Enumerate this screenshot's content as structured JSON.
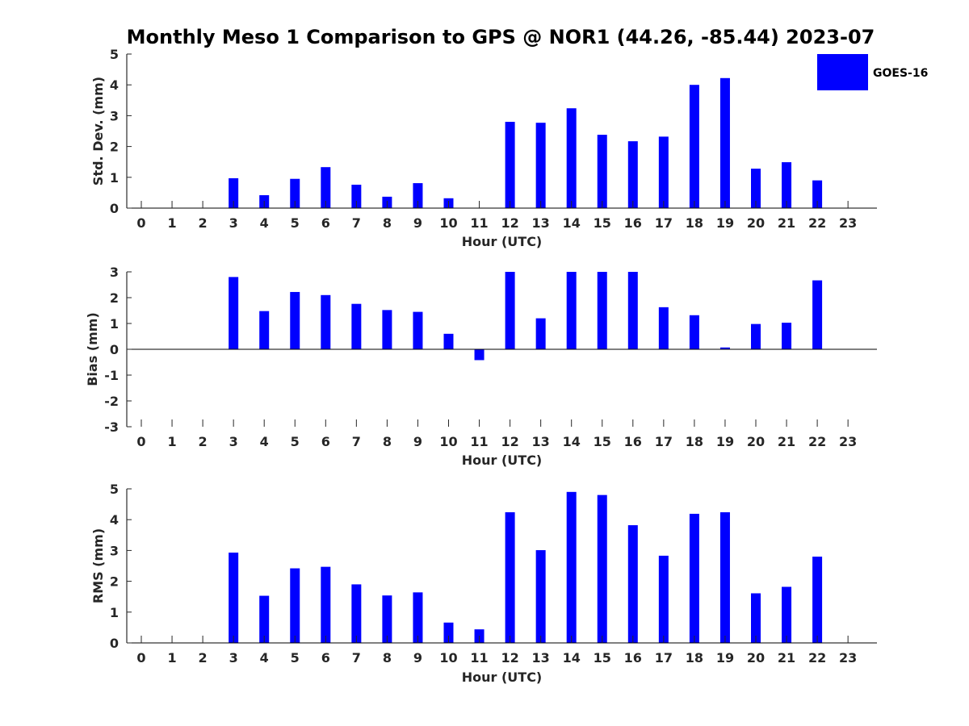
{
  "chart_data": {
    "type": "bar",
    "title": "Monthly Meso 1 Comparison to GPS @ NOR1 (44.26, -85.44) 2023-07",
    "legend": {
      "position": "top-right",
      "entries": [
        {
          "name": "GOES-16",
          "color": "#0000ff"
        }
      ]
    },
    "panels": [
      {
        "id": "std",
        "ylabel": "Std. Dev. (mm)",
        "xlabel": "Hour (UTC)",
        "ylim": [
          0,
          5
        ],
        "yticks": [
          0,
          1,
          2,
          3,
          4,
          5
        ],
        "categories": [
          0,
          1,
          2,
          3,
          4,
          5,
          6,
          7,
          8,
          9,
          10,
          11,
          12,
          13,
          14,
          15,
          16,
          17,
          18,
          19,
          20,
          21,
          22,
          23
        ],
        "series": [
          {
            "name": "GOES-16",
            "color": "#0000ff",
            "values": [
              null,
              null,
              null,
              0.97,
              0.42,
              0.95,
              1.33,
              0.76,
              0.37,
              0.81,
              0.32,
              null,
              2.8,
              2.77,
              3.24,
              2.38,
              2.17,
              2.32,
              4.0,
              4.22,
              1.28,
              1.49,
              0.9,
              null
            ]
          }
        ]
      },
      {
        "id": "bias",
        "ylabel": "Bias (mm)",
        "xlabel": "Hour (UTC)",
        "ylim": [
          -3,
          3
        ],
        "yticks": [
          -3,
          -2,
          -1,
          0,
          1,
          2,
          3
        ],
        "categories": [
          0,
          1,
          2,
          3,
          4,
          5,
          6,
          7,
          8,
          9,
          10,
          11,
          12,
          13,
          14,
          15,
          16,
          17,
          18,
          19,
          20,
          21,
          22,
          23
        ],
        "series": [
          {
            "name": "GOES-16",
            "color": "#0000ff",
            "values": [
              null,
              null,
              null,
              2.8,
              1.48,
              2.22,
              2.1,
              1.76,
              1.52,
              1.45,
              0.6,
              -0.42,
              3.0,
              1.2,
              3.0,
              3.0,
              3.0,
              1.63,
              1.32,
              0.07,
              0.98,
              1.03,
              2.67,
              null
            ]
          }
        ]
      },
      {
        "id": "rms",
        "ylabel": "RMS (mm)",
        "xlabel": "Hour (UTC)",
        "ylim": [
          0,
          5
        ],
        "yticks": [
          0,
          1,
          2,
          3,
          4,
          5
        ],
        "categories": [
          0,
          1,
          2,
          3,
          4,
          5,
          6,
          7,
          8,
          9,
          10,
          11,
          12,
          13,
          14,
          15,
          16,
          17,
          18,
          19,
          20,
          21,
          22,
          23
        ],
        "series": [
          {
            "name": "GOES-16",
            "color": "#0000ff",
            "values": [
              null,
              null,
              null,
              2.93,
              1.53,
              2.42,
              2.47,
              1.9,
              1.54,
              1.64,
              0.66,
              0.44,
              4.24,
              3.01,
              4.9,
              4.8,
              3.82,
              2.83,
              4.19,
              4.24,
              1.61,
              1.82,
              2.8,
              null
            ]
          }
        ]
      }
    ]
  }
}
